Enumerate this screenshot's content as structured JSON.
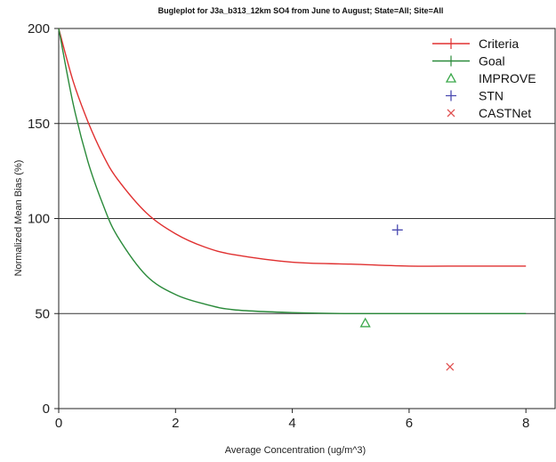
{
  "chart_data": {
    "type": "line",
    "title": "Bugleplot for J3a_b313_12km SO4 from June to August; State=All; Site=All",
    "xlabel": "Average Concentration (ug/m^3)",
    "ylabel": "Normalized Mean Bias (%)",
    "xlim": [
      0,
      8.5
    ],
    "ylim": [
      0,
      200
    ],
    "xticks": [
      "0",
      "2",
      "4",
      "6",
      "8"
    ],
    "yticks": [
      "0",
      "50",
      "100",
      "150",
      "200"
    ],
    "reference_lines": [
      50,
      100,
      150
    ],
    "grid": false,
    "legend_position": "top-right",
    "series": [
      {
        "name": "Criteria",
        "kind": "line",
        "color": "#e03030",
        "x": [
          0,
          0.25,
          0.5,
          0.75,
          1,
          1.5,
          2,
          2.5,
          3,
          4,
          5,
          6,
          7,
          8
        ],
        "y": [
          200,
          172,
          151,
          134,
          121,
          103,
          92,
          85,
          81,
          77,
          76,
          75,
          75,
          75
        ]
      },
      {
        "name": "Goal",
        "kind": "line",
        "color": "#2a8a3a",
        "x": [
          0,
          0.25,
          0.5,
          0.75,
          1,
          1.5,
          2,
          2.5,
          3,
          4,
          5,
          6,
          7,
          8
        ],
        "y": [
          200,
          160,
          130,
          108,
          91,
          70,
          60,
          55,
          52,
          50.5,
          50,
          50,
          50,
          50
        ]
      },
      {
        "name": "IMPROVE",
        "kind": "point",
        "marker": "triangle",
        "color": "#3aa84a",
        "x": [
          5.25
        ],
        "y": [
          45
        ]
      },
      {
        "name": "STN",
        "kind": "point",
        "marker": "plus",
        "color": "#4a4ab0",
        "x": [
          5.8
        ],
        "y": [
          94
        ]
      },
      {
        "name": "CASTNet",
        "kind": "point",
        "marker": "cross",
        "color": "#e05050",
        "x": [
          6.7
        ],
        "y": [
          22
        ]
      }
    ]
  }
}
